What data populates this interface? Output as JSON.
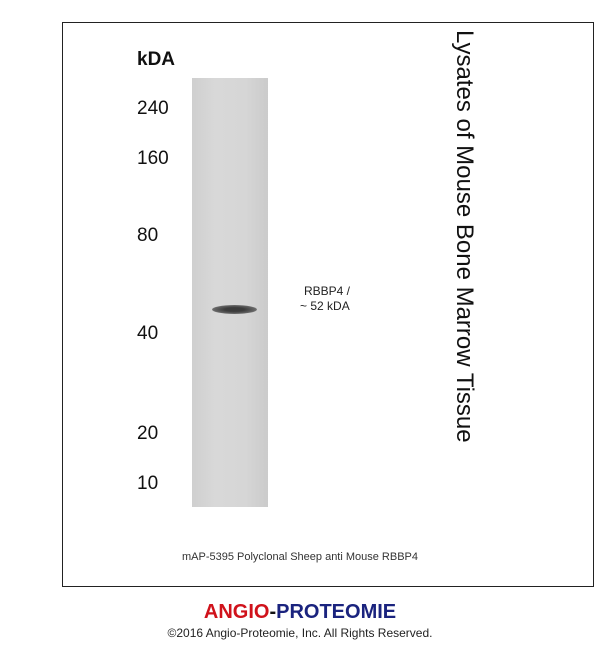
{
  "y_axis_label": "kDA",
  "markers": [
    "240",
    "160",
    "80",
    "40",
    "20",
    "10"
  ],
  "band": {
    "label_line1": "RBBP4  /",
    "label_line2": "~ 52 kDA"
  },
  "sample_title": "Lysates of Mouse Bone Marrow Tissue",
  "caption": "mAP-5395 Polyclonal Sheep anti Mouse RBBP4",
  "brand": {
    "part1": "ANGIO",
    "sep": "-",
    "part2": "PROTEOMIE",
    "color1": "#d0121b",
    "color2": "#1a237e"
  },
  "copyright": "©2016 Angio-Proteomie, Inc.  All Rights Reserved."
}
